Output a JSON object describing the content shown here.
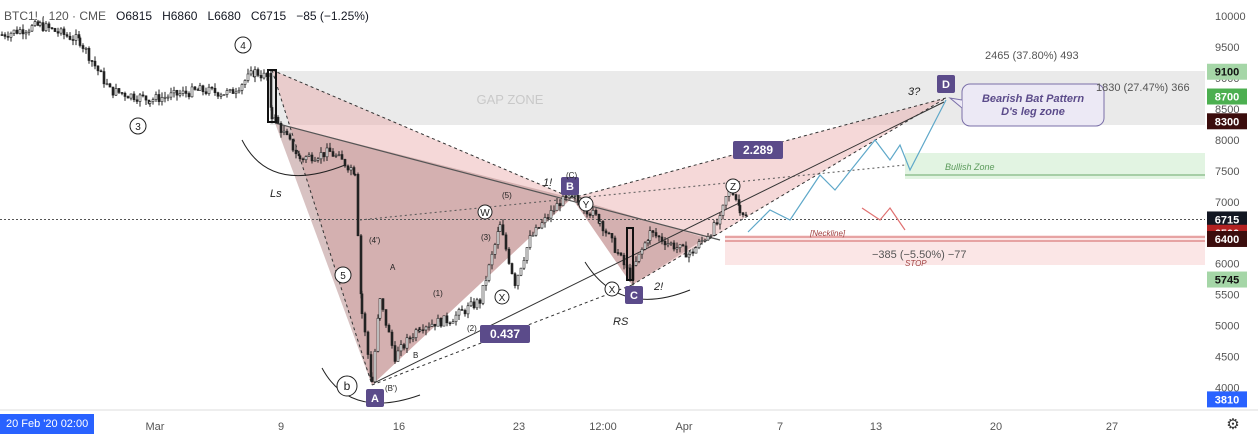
{
  "header": {
    "symbol": "BTC1! · 120 · CME",
    "open": "O6815",
    "high": "H6860",
    "low": "L6680",
    "close": "C6715",
    "change": "−85 (−1.25%)"
  },
  "date_badge": "20 Feb '20   02:00",
  "colors": {
    "bg": "#ffffff",
    "candle": "#222222",
    "pattern_fill": "#e9a8a8",
    "pattern_dark": "#b89090",
    "gap_zone": "#e6e6e6",
    "bullish_zone": "#dff3df",
    "stop_zone": "#fbe3e3",
    "label_bg": "#5b4b8a",
    "price_current": "#131722",
    "price_red": "#b22222",
    "price_dark": "#3b0d0d",
    "price_green": "#4caf50",
    "price_light_green": "#a5d6a7",
    "projection_blue": "#5fa8c9",
    "projection_red": "#e07070"
  },
  "chart_data": {
    "type": "candlestick",
    "title": "BTC1! · 120 · CME",
    "ylim": [
      3700,
      10200
    ],
    "y_ticks": [
      "10000",
      "9500",
      "9000",
      "8500",
      "8000",
      "7500",
      "7000",
      "6500",
      "6000",
      "5500",
      "5000",
      "4500",
      "4000"
    ],
    "x_ticks": [
      "Mar",
      "9",
      "16",
      "23",
      "12:00",
      "Apr",
      "7",
      "13",
      "20",
      "27"
    ],
    "price_labels": [
      {
        "value": 9100,
        "label": "9100",
        "style": "light_green"
      },
      {
        "value": 8700,
        "label": "8700",
        "style": "green"
      },
      {
        "value": 8300,
        "label": "8300",
        "style": "dark"
      },
      {
        "value": 6715,
        "label": "6715",
        "style": "current"
      },
      {
        "value": 6500,
        "label": "6500",
        "style": "red"
      },
      {
        "value": 6400,
        "label": "6400",
        "style": "dark"
      },
      {
        "value": 5745,
        "label": "5745",
        "style": "light_green"
      },
      {
        "value": 3810,
        "label": "3810",
        "style": "blue"
      }
    ],
    "harmonic_points": [
      {
        "name": "X",
        "price": 9100
      },
      {
        "name": "A",
        "price": 4000
      },
      {
        "name": "B",
        "price": 7100
      },
      {
        "name": "C",
        "price": 5700
      },
      {
        "name": "D",
        "price": 8700
      }
    ],
    "ratios": [
      "0.437",
      "2.289"
    ],
    "annotations": {
      "gap_zone": "GAP ZONE",
      "bullish_zone": "Bullish Zone",
      "neckline": "[Neckline]",
      "stop": "STOP",
      "pattern_note_line1": "Bearish Bat Pattern",
      "pattern_note_line2": "D's leg zone",
      "measure_up": "2465 (37.80%) 493",
      "measure_up2": "1830 (27.47%) 366",
      "measure_down": "−385 (−5.50%) −77",
      "ls": "Ls",
      "rs": "RS",
      "wave_4": "4",
      "wave_3": "3",
      "wave_5": "5",
      "wave_b": "b",
      "wave_W": "W",
      "wave_X": "X",
      "wave_Y": "Y",
      "wave_Z": "Z",
      "wave_X2": "X",
      "three_q": "3?",
      "one_excl": "1!",
      "two_excl": "2!",
      "C_paren": "(C)",
      "A_small": "A",
      "B_small": "B",
      "one_paren": "(1)",
      "two_paren": "(2)",
      "three_paren": "(3)",
      "four_paren": "(4')",
      "five_paren": "(5)",
      "B_paren": "(B')"
    }
  }
}
